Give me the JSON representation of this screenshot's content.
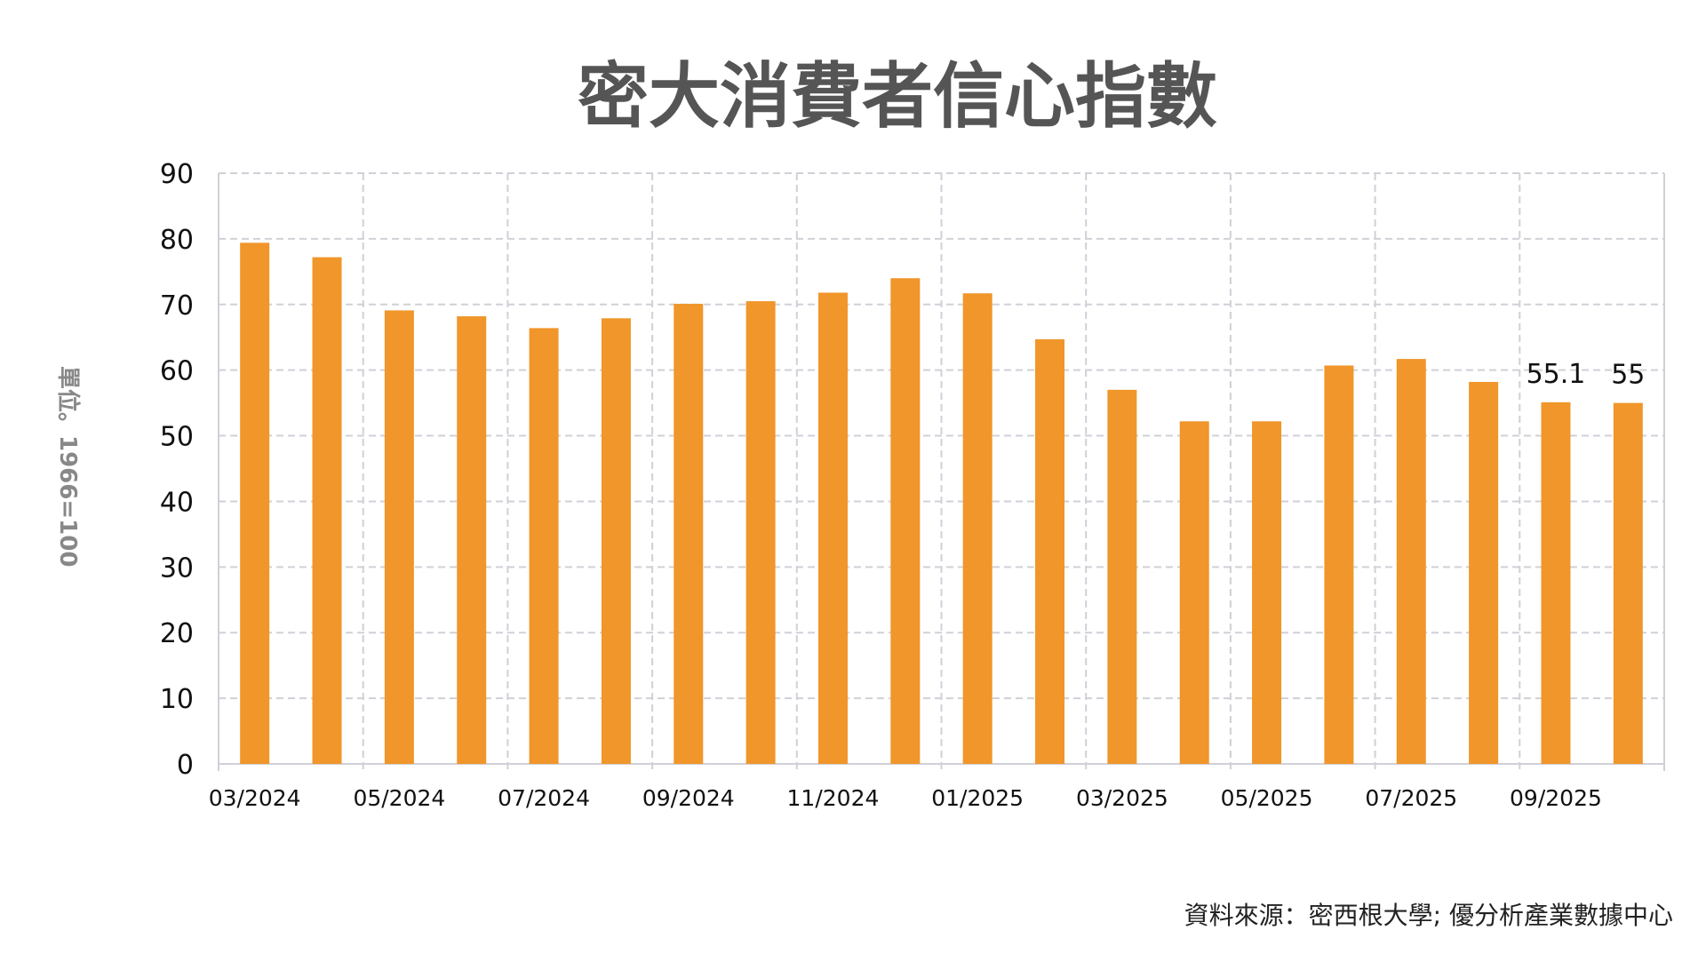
{
  "chart_data": {
    "type": "bar",
    "title": "密大消費者信心指數",
    "ylabel": "單位。1966=100",
    "xlabel": "",
    "ylim": [
      0,
      90
    ],
    "yticks": [
      0,
      10,
      20,
      30,
      40,
      50,
      60,
      70,
      80,
      90
    ],
    "grid": true,
    "categories": [
      "03/2024",
      "04/2024",
      "05/2024",
      "06/2024",
      "07/2024",
      "08/2024",
      "09/2024",
      "10/2024",
      "11/2024",
      "12/2024",
      "01/2025",
      "02/2025",
      "03/2025",
      "04/2025",
      "05/2025",
      "06/2025",
      "07/2025",
      "08/2025",
      "09/2025",
      "10/2025"
    ],
    "xtick_labels": [
      "03/2024",
      "05/2024",
      "07/2024",
      "09/2024",
      "11/2024",
      "01/2025",
      "03/2025",
      "05/2025",
      "07/2025",
      "09/2025"
    ],
    "values": [
      79.4,
      77.2,
      69.1,
      68.2,
      66.4,
      67.9,
      70.1,
      70.5,
      71.8,
      74.0,
      71.7,
      64.7,
      57.0,
      52.2,
      52.2,
      60.7,
      61.7,
      58.2,
      55.1,
      55.0
    ],
    "data_labels": [
      {
        "index": 18,
        "text": "55.1"
      },
      {
        "index": 19,
        "text": "55"
      }
    ],
    "bar_color": "#F0962A",
    "grid_color": "#D0D0D8",
    "source": "資料來源：密西根大學; 優分析產業數據中心"
  }
}
